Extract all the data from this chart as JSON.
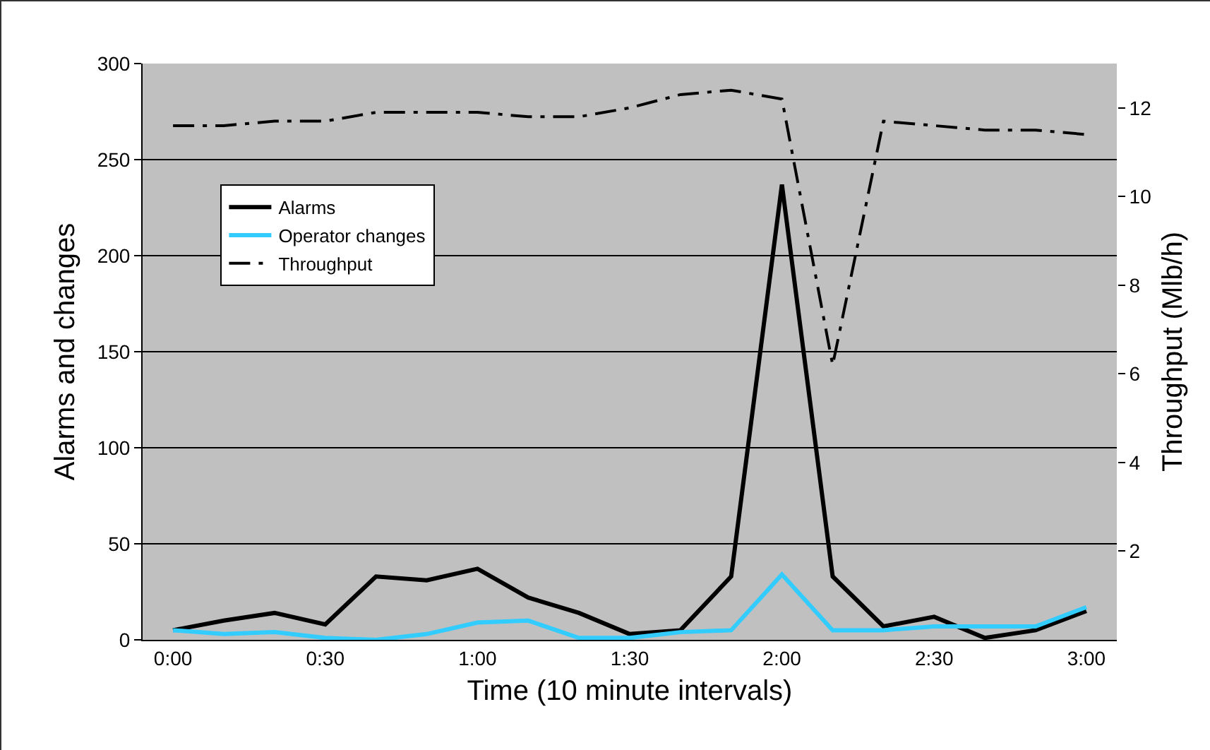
{
  "chart_data": {
    "type": "line",
    "xlabel": "Time (10 minute intervals)",
    "ylabel": "Alarms and changes",
    "y2label": "Throughput (Mlb/h)",
    "categories": [
      "0:00",
      null,
      null,
      "0:30",
      null,
      null,
      "1:00",
      null,
      null,
      "1:30",
      null,
      null,
      "2:00",
      null,
      null,
      "2:30",
      null,
      null,
      "3:00"
    ],
    "series": [
      {
        "name": "Alarms",
        "color": "#000000",
        "line_style": "solid",
        "values": [
          5,
          10,
          14,
          8,
          33,
          31,
          37,
          22,
          14,
          3,
          5,
          33,
          237,
          33,
          7,
          12,
          1,
          5,
          15
        ]
      },
      {
        "name": "Operator changes",
        "color": "#33ccff",
        "line_style": "solid",
        "values": [
          5,
          3,
          4,
          1,
          0,
          3,
          9,
          10,
          1,
          1,
          4,
          5,
          34,
          5,
          5,
          7,
          7,
          7,
          17
        ]
      },
      {
        "name": "Throughput",
        "color": "#000000",
        "line_style": "dashed",
        "axis": "y2",
        "values": [
          11.6,
          11.6,
          11.7,
          11.7,
          11.9,
          11.9,
          11.9,
          11.8,
          11.8,
          12.0,
          12.3,
          12.4,
          12.2,
          6.2,
          11.7,
          11.6,
          11.5,
          11.5,
          11.4
        ]
      }
    ],
    "ylim": [
      0,
      300
    ],
    "yticks": [
      0,
      50,
      100,
      150,
      200,
      250,
      300
    ],
    "y2lim": [
      0,
      13
    ],
    "y2ticks": [
      2,
      4,
      6,
      8,
      10,
      12
    ],
    "grid": "y",
    "legend": "top left",
    "marker": "none"
  }
}
